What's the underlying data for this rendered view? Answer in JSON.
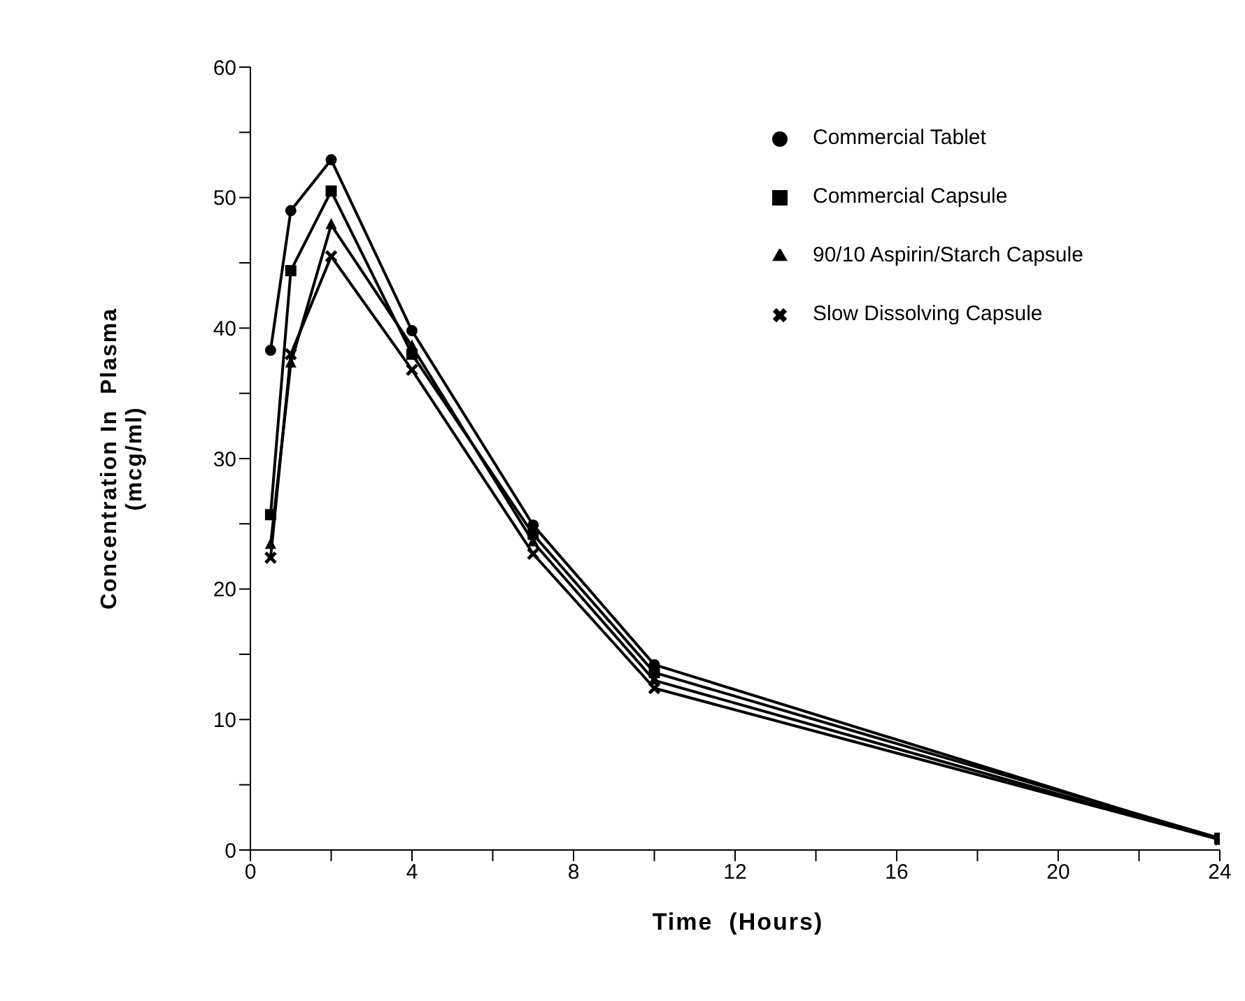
{
  "chart_data": {
    "type": "line",
    "xlabel": "Time  (Hours)",
    "ylabel": "Concentration In  Plasma\n(mcg/ml)",
    "x": [
      0.5,
      1,
      2,
      4,
      7,
      10,
      24
    ],
    "xlim": [
      0,
      24
    ],
    "xticks": [
      0,
      {
        "value": 2,
        "label": null
      },
      4,
      {
        "value": 6,
        "label": null
      },
      8,
      {
        "value": 10,
        "label": null
      },
      12,
      {
        "value": 14,
        "label": null
      },
      16,
      {
        "value": 18,
        "label": null
      },
      20,
      {
        "value": 22,
        "label": null
      },
      24
    ],
    "ylim": [
      0,
      60
    ],
    "yticks": [
      0,
      {
        "value": 5,
        "label": null
      },
      10,
      {
        "value": 15,
        "label": null
      },
      20,
      {
        "value": 25,
        "label": null
      },
      30,
      {
        "value": 35,
        "label": null
      },
      40,
      {
        "value": 45,
        "label": null
      },
      50,
      {
        "value": 55,
        "label": null
      },
      60
    ],
    "grid": false,
    "legend": "top right",
    "line_style": "solid",
    "series": [
      {
        "name": "Commercial Tablet",
        "color": "#000000",
        "marker": "circle",
        "values": [
          38.3,
          49,
          52.9,
          39.8,
          24.9,
          14.2,
          0.8
        ]
      },
      {
        "name": "Commercial Capsule",
        "color": "#000000",
        "marker": "square",
        "values": [
          25.7,
          44.4,
          50.5,
          38,
          24.2,
          13.6,
          0.9
        ]
      },
      {
        "name": "90/10 Aspirin/Starch Capsule",
        "color": "#000000",
        "marker": "triangle",
        "values": [
          23.4,
          37.3,
          47.9,
          38.6,
          23.6,
          13,
          0.8
        ]
      },
      {
        "name": "Slow Dissolving Capsule",
        "color": "#000000",
        "marker": "cross",
        "values": [
          22.4,
          38,
          45.5,
          36.8,
          22.7,
          12.4,
          0.8
        ]
      }
    ]
  }
}
